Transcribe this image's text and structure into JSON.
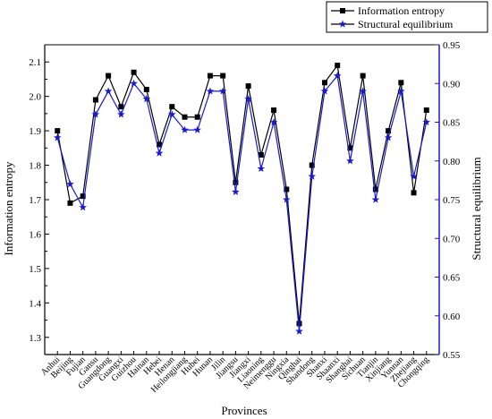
{
  "chart_data": {
    "type": "line",
    "xlabel": "Provinces",
    "ylabel_left": "Information entropy",
    "ylabel_right": "Structural equilibrium",
    "categories": [
      "Anhui",
      "Beijing",
      "Fujian",
      "Gansu",
      "Guangdong",
      "Guangxi",
      "Guizhou",
      "Hainan",
      "Hebei",
      "Henan",
      "Heilongjiang",
      "Hubei",
      "Hunan",
      "Jilin",
      "Jiangsu",
      "Jiangxi",
      "Liaoning",
      "Neimenggu",
      "Ningxia",
      "Qinghai",
      "Shandong",
      "Shanxi",
      "Shaanxi",
      "Shanghai",
      "Sichuan",
      "Tianjin",
      "Xinjiang",
      "Yunnan",
      "Zhejiang",
      "Chongqing"
    ],
    "left_axis": {
      "ylim": [
        1.25,
        2.15
      ],
      "ticks": [
        "1.3",
        "1.4",
        "1.5",
        "1.6",
        "1.7",
        "1.8",
        "1.9",
        "2.0",
        "2.1"
      ]
    },
    "right_axis": {
      "ylim": [
        0.55,
        0.95
      ],
      "ticks": [
        "0.55",
        "0.60",
        "0.65",
        "0.70",
        "0.75",
        "0.80",
        "0.85",
        "0.90",
        "0.95"
      ],
      "color": "#1a1acc"
    },
    "series": [
      {
        "name": "Information entropy",
        "axis": "left",
        "color": "#000000",
        "marker": "square",
        "values": [
          1.9,
          1.69,
          1.71,
          1.99,
          2.06,
          1.97,
          2.07,
          2.02,
          1.86,
          1.97,
          1.94,
          1.94,
          2.06,
          2.06,
          1.75,
          2.03,
          1.83,
          1.96,
          1.73,
          1.34,
          1.8,
          2.04,
          2.09,
          1.85,
          2.06,
          1.73,
          1.9,
          2.04,
          1.72,
          1.96
        ]
      },
      {
        "name": "Structural equilibrium",
        "axis": "right",
        "color": "#1a1acc",
        "marker": "star",
        "values": [
          0.83,
          0.77,
          0.74,
          0.86,
          0.89,
          0.86,
          0.9,
          0.88,
          0.81,
          0.86,
          0.84,
          0.84,
          0.89,
          0.89,
          0.76,
          0.88,
          0.79,
          0.85,
          0.75,
          0.58,
          0.78,
          0.89,
          0.91,
          0.8,
          0.89,
          0.75,
          0.83,
          0.89,
          0.78,
          0.85
        ]
      }
    ],
    "legend_position": "top-right"
  }
}
